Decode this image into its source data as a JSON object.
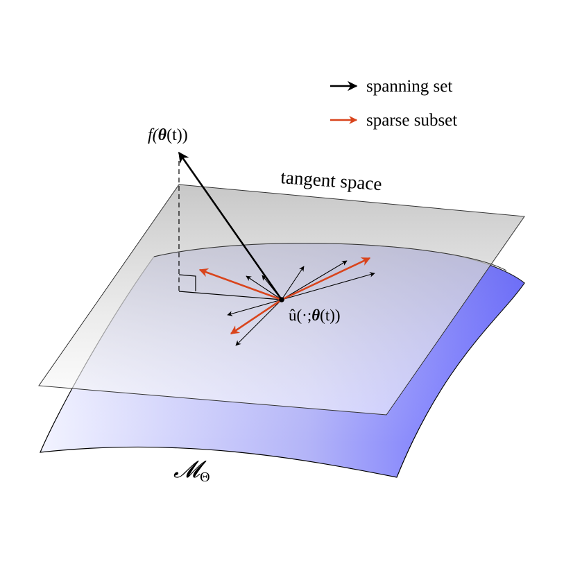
{
  "legend": {
    "items": [
      {
        "label": "spanning set",
        "color": "#000000"
      },
      {
        "label": "sparse subset",
        "color": "#d9441c"
      }
    ]
  },
  "labels": {
    "tangent_space": "tangent space",
    "f_label_prefix": "f(",
    "f_label_theta": "θ",
    "f_label_suffix": "(t))",
    "u_label_prefix": "û(·;",
    "u_label_theta": "θ",
    "u_label_suffix": "(t))",
    "manifold_main": "𝓜",
    "manifold_sub": "Θ"
  },
  "colors": {
    "plane_fill": "#c8c8c8",
    "manifold_light": "#eef0ff",
    "manifold_dark": "#5a5cff",
    "spanning": "#000000",
    "sparse": "#d9441c"
  }
}
